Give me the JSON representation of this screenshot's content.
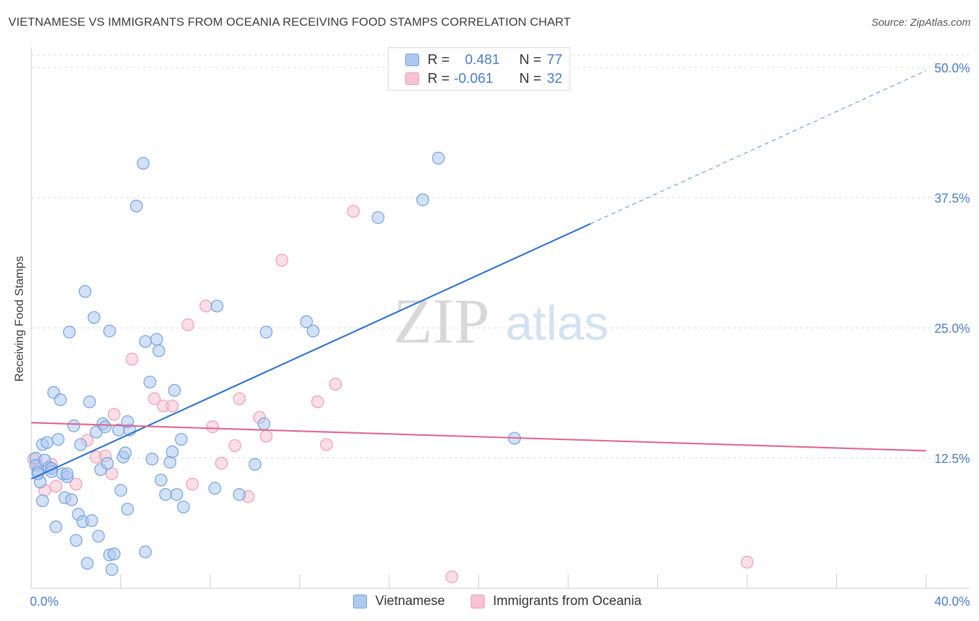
{
  "title": "VIETNAMESE VS IMMIGRANTS FROM OCEANIA RECEIVING FOOD STAMPS CORRELATION CHART",
  "source": "Source: ZipAtlas.com",
  "watermark": {
    "zip": "ZIP",
    "atlas": "atlas"
  },
  "legend_top": {
    "rows": [
      {
        "r_label": "R =",
        "r_value": "0.481",
        "n_label": "N =",
        "n_value": "77"
      },
      {
        "r_label": "R =",
        "r_value": "-0.061",
        "n_label": "N =",
        "n_value": "32"
      }
    ]
  },
  "legend_bottom": [
    "Vietnamese",
    "Immigrants from Oceania"
  ],
  "colors": {
    "blue_fill": "#aec9ef",
    "blue_stroke": "#6f9fe0",
    "blue_line": "#2e72d2",
    "pink_fill": "#f7c3d2",
    "pink_stroke": "#ee9ab4",
    "pink_line": "#e06690",
    "tick_label": "#4a7cc7",
    "grid": "#d9d9d9"
  },
  "chart_data": {
    "type": "scatter",
    "title": "VIETNAMESE VS IMMIGRANTS FROM OCEANIA RECEIVING FOOD STAMPS CORRELATION CHART",
    "xlabel": "",
    "ylabel": "Receiving Food Stamps",
    "xlim": [
      0,
      40
    ],
    "ylim": [
      0,
      50
    ],
    "x_tick_labels": [
      "0.0%",
      "40.0%"
    ],
    "y_tick_labels": [
      "12.5%",
      "25.0%",
      "37.5%",
      "50.0%"
    ],
    "y_ticks": [
      12.5,
      25.0,
      37.5,
      50.0
    ],
    "grid": true,
    "legend_position": "bottom",
    "series": [
      {
        "name": "Vietnamese",
        "r": 0.481,
        "n": 77,
        "trend": {
          "x": [
            0,
            25
          ],
          "y": [
            10.5,
            35.0
          ],
          "extended_x": [
            25,
            40
          ],
          "extended_y": [
            35.0,
            49.7
          ]
        },
        "points": [
          [
            0.2,
            12.5
          ],
          [
            0.2,
            11.8
          ],
          [
            0.3,
            11.2
          ],
          [
            0.4,
            10.2
          ],
          [
            0.5,
            8.4
          ],
          [
            0.5,
            13.8
          ],
          [
            0.6,
            12.3
          ],
          [
            0.7,
            14.0
          ],
          [
            0.8,
            11.6
          ],
          [
            0.9,
            11.5
          ],
          [
            1.0,
            18.8
          ],
          [
            1.1,
            5.9
          ],
          [
            1.2,
            14.3
          ],
          [
            1.3,
            18.1
          ],
          [
            1.4,
            11.0
          ],
          [
            1.5,
            8.7
          ],
          [
            1.6,
            10.7
          ],
          [
            1.7,
            24.6
          ],
          [
            1.8,
            8.5
          ],
          [
            1.9,
            15.6
          ],
          [
            2.0,
            4.6
          ],
          [
            2.1,
            7.1
          ],
          [
            2.2,
            13.8
          ],
          [
            2.3,
            6.4
          ],
          [
            2.4,
            28.5
          ],
          [
            2.5,
            2.4
          ],
          [
            2.6,
            17.9
          ],
          [
            2.7,
            6.5
          ],
          [
            2.8,
            26.0
          ],
          [
            2.9,
            15.0
          ],
          [
            3.0,
            5.0
          ],
          [
            3.1,
            11.4
          ],
          [
            3.2,
            15.8
          ],
          [
            3.3,
            15.5
          ],
          [
            3.4,
            12.0
          ],
          [
            3.5,
            24.7
          ],
          [
            3.5,
            3.2
          ],
          [
            3.6,
            1.8
          ],
          [
            3.7,
            3.3
          ],
          [
            3.9,
            15.2
          ],
          [
            4.0,
            9.4
          ],
          [
            4.1,
            12.6
          ],
          [
            4.2,
            13.0
          ],
          [
            4.3,
            7.6
          ],
          [
            4.4,
            15.2
          ],
          [
            4.3,
            16.0
          ],
          [
            4.7,
            36.7
          ],
          [
            5.0,
            40.8
          ],
          [
            5.1,
            23.7
          ],
          [
            5.1,
            3.5
          ],
          [
            5.3,
            19.8
          ],
          [
            5.4,
            12.4
          ],
          [
            5.6,
            23.9
          ],
          [
            5.7,
            22.8
          ],
          [
            5.8,
            10.4
          ],
          [
            6.0,
            9.0
          ],
          [
            6.2,
            12.1
          ],
          [
            6.3,
            13.1
          ],
          [
            6.4,
            19.0
          ],
          [
            6.5,
            9.0
          ],
          [
            6.7,
            14.3
          ],
          [
            6.8,
            7.8
          ],
          [
            8.2,
            9.6
          ],
          [
            8.3,
            27.1
          ],
          [
            9.3,
            9.0
          ],
          [
            10.0,
            11.9
          ],
          [
            10.4,
            15.8
          ],
          [
            10.5,
            24.6
          ],
          [
            12.3,
            25.6
          ],
          [
            12.6,
            24.7
          ],
          [
            15.5,
            35.6
          ],
          [
            17.5,
            37.3
          ],
          [
            18.2,
            41.3
          ],
          [
            21.6,
            14.4
          ],
          [
            0.3,
            11.0
          ],
          [
            0.9,
            11.2
          ],
          [
            1.6,
            11.0
          ]
        ]
      },
      {
        "name": "Immigrants from Oceania",
        "r": -0.061,
        "n": 32,
        "trend": {
          "x": [
            0,
            40
          ],
          "y": [
            15.9,
            13.2
          ]
        },
        "points": [
          [
            0.1,
            12.4
          ],
          [
            0.3,
            11.8
          ],
          [
            0.6,
            9.4
          ],
          [
            0.9,
            11.9
          ],
          [
            1.1,
            9.8
          ],
          [
            2.0,
            10.0
          ],
          [
            2.5,
            14.2
          ],
          [
            2.9,
            12.6
          ],
          [
            3.3,
            12.7
          ],
          [
            3.6,
            11.0
          ],
          [
            3.7,
            16.7
          ],
          [
            4.5,
            22.0
          ],
          [
            5.5,
            18.2
          ],
          [
            5.9,
            17.5
          ],
          [
            6.3,
            17.5
          ],
          [
            7.0,
            25.3
          ],
          [
            7.2,
            10.0
          ],
          [
            7.8,
            27.1
          ],
          [
            8.1,
            15.5
          ],
          [
            8.5,
            12.0
          ],
          [
            9.1,
            13.7
          ],
          [
            9.3,
            18.2
          ],
          [
            9.7,
            8.8
          ],
          [
            10.2,
            16.4
          ],
          [
            10.5,
            14.6
          ],
          [
            11.2,
            31.5
          ],
          [
            12.8,
            17.9
          ],
          [
            13.2,
            13.8
          ],
          [
            13.6,
            19.6
          ],
          [
            14.4,
            36.2
          ],
          [
            18.8,
            1.1
          ],
          [
            32.0,
            2.5
          ]
        ]
      }
    ]
  }
}
